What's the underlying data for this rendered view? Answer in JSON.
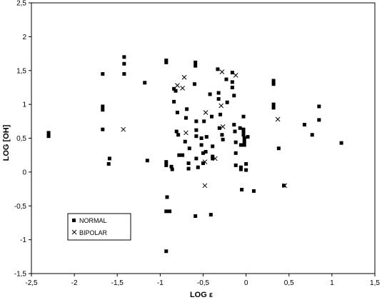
{
  "chart_data": {
    "type": "scatter",
    "xlabel": "LOG ε",
    "ylabel": "LOG [OH]",
    "xlim": [
      -2.5,
      1.5
    ],
    "ylim": [
      -1.5,
      2.5
    ],
    "x_ticks": [
      "-2,5",
      "-2",
      "-1,5",
      "-1",
      "-0,5",
      "0",
      "0,5",
      "1",
      "1,5"
    ],
    "y_ticks": [
      "2,5",
      "2",
      "1,5",
      "1",
      "0,5",
      "0",
      "-0,5",
      "-1",
      "-1,5"
    ],
    "x_tick_values": [
      -2.5,
      -2,
      -1.5,
      -1,
      -0.5,
      0,
      0.5,
      1,
      1.5
    ],
    "y_tick_values": [
      2.5,
      2,
      1.5,
      1,
      0.5,
      0,
      -0.5,
      -1,
      -1.5
    ],
    "grid": false,
    "legend_position": "bottom-left",
    "series": [
      {
        "name": "NORMAL",
        "marker": "square",
        "color": "#000000",
        "points": [
          [
            -2.3,
            0.58
          ],
          [
            -2.3,
            0.53
          ],
          [
            -1.67,
            1.45
          ],
          [
            -1.67,
            0.97
          ],
          [
            -1.67,
            0.92
          ],
          [
            -1.67,
            0.63
          ],
          [
            -1.59,
            0.2
          ],
          [
            -1.6,
            0.12
          ],
          [
            -1.42,
            1.7
          ],
          [
            -1.42,
            1.6
          ],
          [
            -1.42,
            1.45
          ],
          [
            -1.18,
            1.32
          ],
          [
            -1.15,
            0.17
          ],
          [
            -0.93,
            1.65
          ],
          [
            -0.93,
            1.62
          ],
          [
            -0.93,
            0.15
          ],
          [
            -0.93,
            0.1
          ],
          [
            -0.92,
            -0.37
          ],
          [
            -0.93,
            -0.58
          ],
          [
            -0.89,
            -0.58
          ],
          [
            -0.93,
            -1.17
          ],
          [
            -0.87,
            0.08
          ],
          [
            -0.86,
            0.04
          ],
          [
            -0.84,
            1.23
          ],
          [
            -0.82,
            1.2
          ],
          [
            -0.84,
            1.04
          ],
          [
            -0.8,
            0.88
          ],
          [
            -0.81,
            0.6
          ],
          [
            -0.79,
            0.55
          ],
          [
            -0.78,
            0.25
          ],
          [
            -0.74,
            0.25
          ],
          [
            -0.71,
            0.45
          ],
          [
            -0.7,
            0.8
          ],
          [
            -0.69,
            0.93
          ],
          [
            -0.66,
            0.35
          ],
          [
            -0.67,
            0.13
          ],
          [
            -0.67,
            0.05
          ],
          [
            -0.59,
            1.62
          ],
          [
            -0.59,
            1.57
          ],
          [
            -0.6,
            1.3
          ],
          [
            -0.58,
            0.75
          ],
          [
            -0.58,
            0.62
          ],
          [
            -0.58,
            0.53
          ],
          [
            -0.58,
            0.2
          ],
          [
            -0.56,
            0.07
          ],
          [
            -0.59,
            -0.65
          ],
          [
            -0.52,
            0.5
          ],
          [
            -0.52,
            0.4
          ],
          [
            -0.5,
            0.28
          ],
          [
            -0.5,
            0.13
          ],
          [
            -0.49,
            0.75
          ],
          [
            -0.47,
            0.3
          ],
          [
            -0.46,
            0.52
          ],
          [
            -0.42,
            1.15
          ],
          [
            -0.4,
            0.82
          ],
          [
            -0.39,
            0.38
          ],
          [
            -0.39,
            0.23
          ],
          [
            -0.39,
            0.2
          ],
          [
            -0.41,
            -0.63
          ],
          [
            -0.33,
            1.52
          ],
          [
            -0.32,
            1.17
          ],
          [
            -0.32,
            1.08
          ],
          [
            -0.3,
            0.85
          ],
          [
            -0.31,
            0.65
          ],
          [
            -0.28,
            0.55
          ],
          [
            -0.27,
            0.48
          ],
          [
            -0.23,
            1.37
          ],
          [
            -0.22,
            1.03
          ],
          [
            -0.16,
            1.47
          ],
          [
            -0.16,
            1.33
          ],
          [
            -0.16,
            1.25
          ],
          [
            -0.14,
            1.13
          ],
          [
            -0.14,
            0.7
          ],
          [
            -0.13,
            0.6
          ],
          [
            -0.12,
            0.44
          ],
          [
            -0.12,
            0.28
          ],
          [
            -0.12,
            0.1
          ],
          [
            -0.07,
            0.65
          ],
          [
            -0.06,
            0.4
          ],
          [
            -0.06,
            0.07
          ],
          [
            -0.06,
            0.04
          ],
          [
            -0.03,
            0.82
          ],
          [
            -0.03,
            0.63
          ],
          [
            -0.03,
            0.6
          ],
          [
            -0.03,
            0.55
          ],
          [
            -0.02,
            0.5
          ],
          [
            -0.02,
            0.45
          ],
          [
            0.0,
            0.12
          ],
          [
            -0.02,
            0.4
          ],
          [
            0.0,
            0.03
          ],
          [
            0.02,
            0.52
          ],
          [
            0.09,
            -0.28
          ],
          [
            -0.05,
            -0.26
          ],
          [
            0.32,
            1.35
          ],
          [
            0.32,
            1.3
          ],
          [
            0.32,
            1.0
          ],
          [
            0.32,
            0.95
          ],
          [
            0.38,
            0.35
          ],
          [
            0.44,
            -0.2
          ],
          [
            0.68,
            0.7
          ],
          [
            0.77,
            0.55
          ],
          [
            0.85,
            0.97
          ],
          [
            0.85,
            0.77
          ],
          [
            1.11,
            0.43
          ]
        ]
      },
      {
        "name": "BIPOLAR",
        "marker": "x",
        "color": "#000000",
        "points": [
          [
            -1.43,
            0.63
          ],
          [
            -0.72,
            1.4
          ],
          [
            -0.8,
            1.28
          ],
          [
            -0.74,
            1.24
          ],
          [
            -0.7,
            0.58
          ],
          [
            -0.47,
            0.88
          ],
          [
            -0.48,
            0.15
          ],
          [
            -0.48,
            -0.2
          ],
          [
            -0.36,
            0.2
          ],
          [
            -0.28,
            1.48
          ],
          [
            -0.27,
            0.67
          ],
          [
            -0.29,
            0.98
          ],
          [
            -0.12,
            1.43
          ],
          [
            0.37,
            0.78
          ],
          [
            0.45,
            -0.2
          ]
        ]
      }
    ]
  }
}
